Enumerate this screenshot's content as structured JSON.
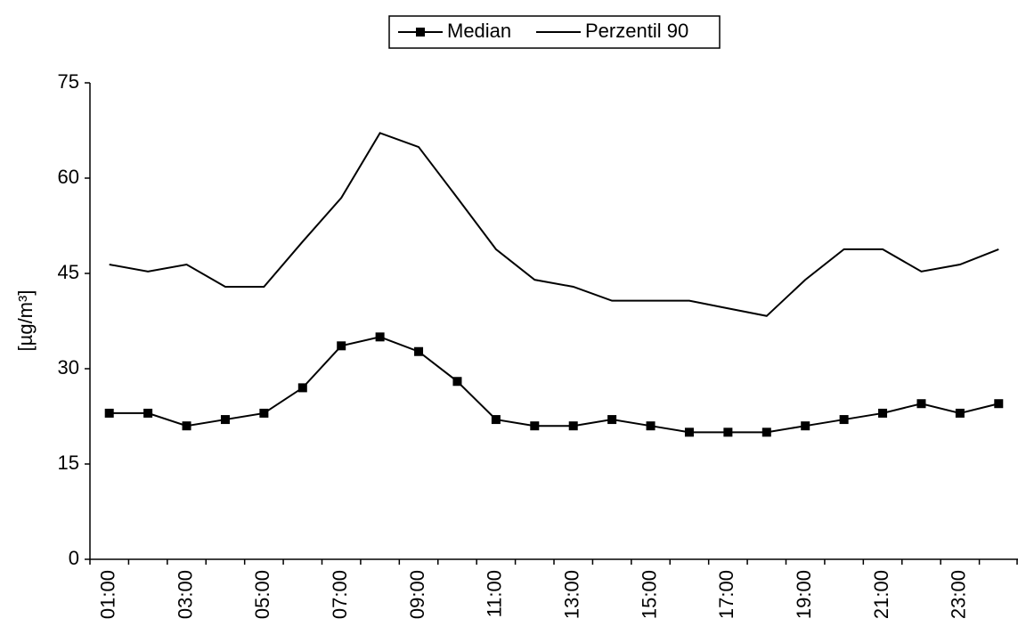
{
  "chart_data": {
    "type": "line",
    "y_label": "[µg/m³]",
    "categories": [
      "01:00",
      null,
      "03:00",
      null,
      "05:00",
      null,
      "07:00",
      null,
      "09:00",
      null,
      "11:00",
      null,
      "13:00",
      null,
      "15:00",
      null,
      "17:00",
      null,
      "19:00",
      null,
      "21:00",
      null,
      "23:00",
      null
    ],
    "series": [
      {
        "name": "Median",
        "color": "#000000",
        "marker": "square",
        "values": [
          23,
          23,
          21,
          22,
          23,
          27,
          33.6,
          35,
          32.7,
          28,
          22,
          21,
          21,
          22,
          21,
          20,
          20,
          20,
          21,
          22,
          23,
          24.5,
          23,
          24.5
        ]
      },
      {
        "name": "Perzentil 90",
        "color": "#000000",
        "marker": "none",
        "values": [
          46.4,
          45.3,
          46.4,
          42.9,
          42.9,
          50,
          56.9,
          67.1,
          64.9,
          56.9,
          48.8,
          44,
          42.9,
          40.7,
          40.7,
          40.7,
          39.5,
          38.3,
          44,
          48.8,
          48.8,
          45.3,
          46.4,
          48.8
        ]
      }
    ],
    "ylim": [
      0,
      75
    ],
    "yticks": [
      0,
      15,
      30,
      45,
      60,
      75
    ],
    "grid": false,
    "legend": "top"
  }
}
